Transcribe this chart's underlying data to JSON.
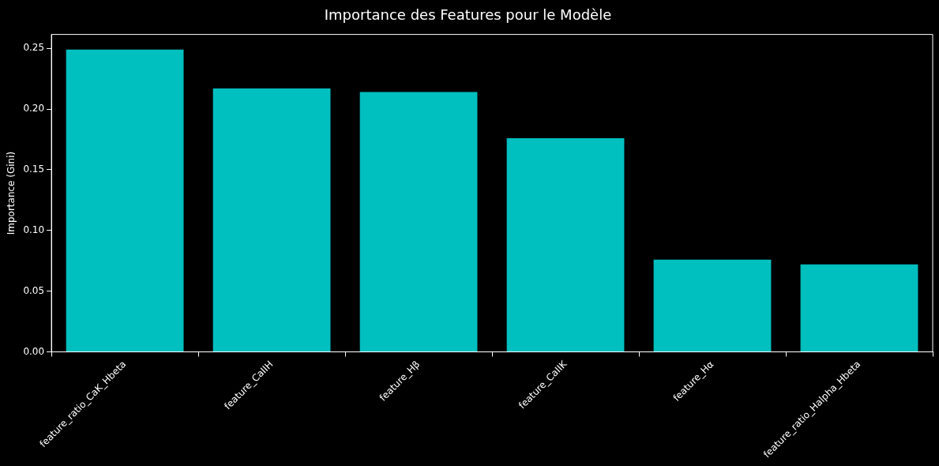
{
  "chart_data": {
    "type": "bar",
    "title": "Importance des Features pour le Modèle",
    "ylabel": "Importance (Gini)",
    "categories": [
      "feature_ratio_CaK_Hbeta",
      "feature_CaIIH",
      "feature_Hβ",
      "feature_CaIIK",
      "feature_Hα",
      "feature_ratio_Halpha_Hbeta"
    ],
    "values": [
      0.249,
      0.217,
      0.214,
      0.176,
      0.076,
      0.072
    ],
    "color": "#00bfbf",
    "ylim": [
      0,
      0.2615
    ],
    "yticks": [
      {
        "value": 0,
        "label": "0.00"
      },
      {
        "value": 0.05,
        "label": "0.05"
      },
      {
        "value": 0.1,
        "label": "0.10"
      },
      {
        "value": 0.15,
        "label": "0.15"
      },
      {
        "value": 0.2,
        "label": "0.20"
      },
      {
        "value": 0.25,
        "label": "0.25"
      }
    ],
    "grid": false
  }
}
